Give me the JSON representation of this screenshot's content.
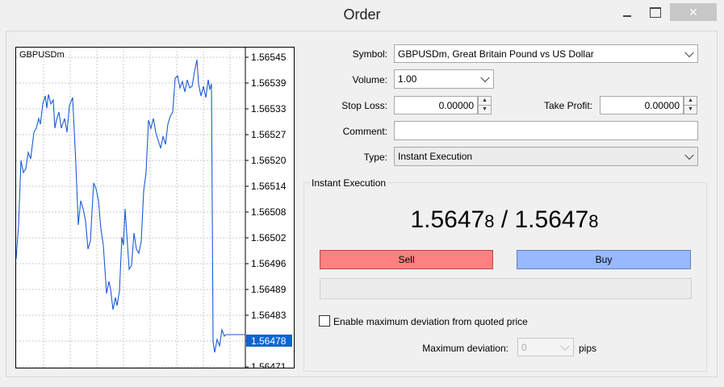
{
  "window": {
    "title": "Order"
  },
  "chart": {
    "symbol": "GBPUSDm",
    "price_labels": [
      "1.56545",
      "1.56539",
      "1.56533",
      "1.56527",
      "1.56520",
      "1.56514",
      "1.56508",
      "1.56502",
      "1.56496",
      "1.56489",
      "1.56483",
      "1.56478",
      "1.56471"
    ],
    "current_price_label": "1.56478",
    "line_color": "#1a5bd6",
    "highlight_color": "#0a64d2"
  },
  "form": {
    "symbol_label": "Symbol:",
    "symbol_value": "GBPUSDm, Great Britain Pound vs US Dollar",
    "volume_label": "Volume:",
    "volume_value": "1.00",
    "stop_loss_label": "Stop Loss:",
    "stop_loss_value": "0.00000",
    "take_profit_label": "Take Profit:",
    "take_profit_value": "0.00000",
    "comment_label": "Comment:",
    "comment_value": "",
    "type_label": "Type:",
    "type_value": "Instant Execution"
  },
  "execution": {
    "group_title": "Instant Execution",
    "bid_main": "1.5647",
    "bid_small": "8",
    "separator": " / ",
    "ask_main": "1.5647",
    "ask_small": "8",
    "sell_label": "Sell",
    "buy_label": "Buy",
    "sell_color": "#ff8080",
    "buy_color": "#98b8ff",
    "deviation_checkbox_label": "Enable maximum deviation from quoted price",
    "deviation_checked": false,
    "max_deviation_label": "Maximum deviation:",
    "max_deviation_value": "0",
    "pips_label": "pips"
  }
}
